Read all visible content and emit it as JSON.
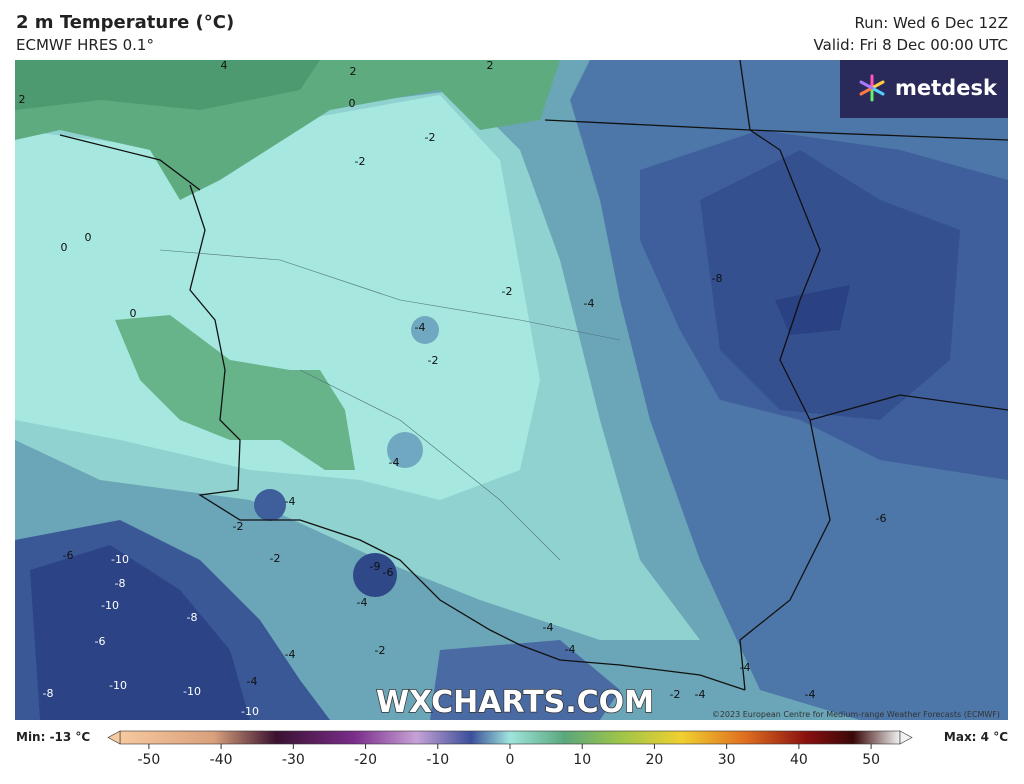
{
  "header": {
    "title": "2 m Temperature (°C)",
    "subtitle": "ECMWF HRES 0.1°",
    "run": "Run: Wed 6 Dec 12Z",
    "valid": "Valid: Fri 8 Dec 00:00 UTC"
  },
  "logo": "metdesk",
  "watermark": "WXCHARTS.COM",
  "copyright": "©2023 European Centre for Medium-range Weather Forecasts (ECMWF)",
  "contour_labels": [
    "2",
    "4",
    "2",
    "2",
    "0",
    "-2",
    "-2",
    "0",
    "0",
    "0",
    "-2",
    "-4",
    "-2",
    "-4",
    "-4",
    "-8",
    "-6",
    "-6",
    "-4",
    "-2",
    "-2",
    "-9",
    "-6",
    "-4",
    "-10",
    "-8",
    "-10",
    "-8",
    "-6",
    "-4",
    "-2",
    "-4",
    "-4",
    "-10",
    "-10",
    "-8",
    "-10",
    "-4",
    "-2",
    "-4",
    "-4",
    "-4"
  ],
  "legend": {
    "min": "Min: -13 °C",
    "max": "Max: 4 °C",
    "ticks": [
      -50,
      -40,
      -30,
      -20,
      -10,
      0,
      10,
      20,
      30,
      40,
      50
    ],
    "range": [
      -54,
      54
    ]
  }
}
